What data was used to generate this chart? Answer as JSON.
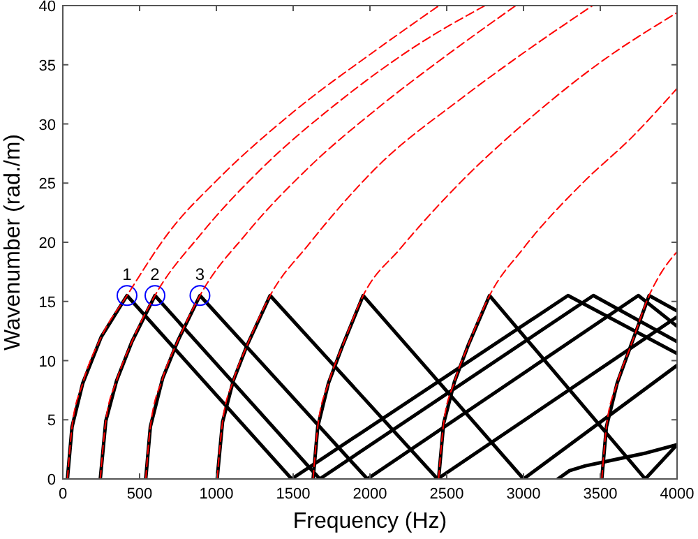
{
  "chart_data": {
    "type": "line",
    "xlabel": "Frequency (Hz)",
    "ylabel": "Wavenumber (rad./m)",
    "xlim": [
      0,
      4000
    ],
    "ylim": [
      0,
      40
    ],
    "xticks": [
      0,
      500,
      1000,
      1500,
      2000,
      2500,
      3000,
      3500,
      4000
    ],
    "yticks": [
      0,
      5,
      10,
      15,
      20,
      25,
      30,
      35,
      40
    ],
    "grid": false,
    "series": [
      {
        "color": "#ff0000",
        "line_style": "dashed",
        "x": [
          30,
          60,
          130,
          250,
          418,
          700,
          1000,
          1500,
          2057,
          2450
        ],
        "values": [
          0,
          4.4,
          8.1,
          12,
          15.5,
          21,
          25.2,
          31,
          36.4,
          40
        ]
      },
      {
        "color": "#ff0000",
        "line_style": "dashed",
        "x": [
          244,
          280,
          350,
          450,
          600,
          900,
          1300,
          1800,
          2300,
          2750
        ],
        "values": [
          0,
          4.9,
          8.3,
          11.6,
          15.5,
          20.7,
          26.3,
          31.9,
          36.6,
          40
        ]
      },
      {
        "color": "#ff0000",
        "line_style": "dashed",
        "x": [
          540,
          570,
          650,
          750,
          893,
          1200,
          1600,
          2057,
          2500,
          2950
        ],
        "values": [
          0,
          4.4,
          8.5,
          11.7,
          15.5,
          20.8,
          26.3,
          31.4,
          35.8,
          40
        ]
      },
      {
        "color": "#ff0000",
        "line_style": "dashed",
        "x": [
          1005,
          1040,
          1110,
          1200,
          1350,
          1600,
          2057,
          2600,
          3000,
          3450
        ],
        "values": [
          0,
          4.8,
          8.3,
          11.3,
          15.5,
          19.8,
          26.5,
          32.2,
          36,
          40
        ]
      },
      {
        "color": "#ff0000",
        "line_style": "dashed",
        "x": [
          1630,
          1660,
          1730,
          1820,
          1956,
          2200,
          2600,
          3000,
          3500,
          4000
        ],
        "values": [
          0,
          4.4,
          8.1,
          11.2,
          15.5,
          19.5,
          25.2,
          30,
          35.2,
          39.4
        ]
      },
      {
        "color": "#ff0000",
        "line_style": "dashed",
        "x": [
          2447,
          2480,
          2550,
          2640,
          2779,
          3000,
          3400,
          3700,
          4000
        ],
        "values": [
          0,
          4.7,
          8.2,
          11.3,
          15.5,
          19.5,
          25.2,
          28.8,
          33
        ]
      },
      {
        "color": "#ff0000",
        "line_style": "dashed",
        "x": [
          3510,
          3540,
          3610,
          3700,
          3818,
          3900,
          4000
        ],
        "values": [
          0,
          4.4,
          8.1,
          11.3,
          15.5,
          17.5,
          19.2
        ]
      },
      {
        "color": "#000000",
        "line_style": "solid",
        "x": [
          30,
          60,
          130,
          250,
          418,
          1490,
          3290,
          4000
        ],
        "values": [
          0,
          4.4,
          8.1,
          12,
          15.5,
          0,
          15.5,
          10.6
        ]
      },
      {
        "color": "#000000",
        "line_style": "solid",
        "x": [
          244,
          280,
          350,
          450,
          600,
          1673,
          3455,
          4000
        ],
        "values": [
          0,
          4.9,
          8.3,
          11.6,
          15.5,
          0,
          15.5,
          11.6
        ]
      },
      {
        "color": "#000000",
        "line_style": "solid",
        "x": [
          540,
          570,
          650,
          750,
          893,
          1983,
          3748,
          4000
        ],
        "values": [
          0,
          4.4,
          8.5,
          11.7,
          15.5,
          0,
          15.5,
          12.9
        ]
      },
      {
        "color": "#000000",
        "line_style": "solid",
        "x": [
          1005,
          1040,
          1110,
          1200,
          1350,
          2440,
          4000
        ],
        "values": [
          0,
          4.8,
          8.3,
          11.3,
          15.5,
          0,
          13.7
        ]
      },
      {
        "color": "#000000",
        "line_style": "solid",
        "x": [
          1630,
          1660,
          1730,
          1820,
          1956,
          3000,
          4000
        ],
        "values": [
          0,
          4.4,
          8.1,
          11.2,
          15.5,
          0,
          9.6
        ]
      },
      {
        "color": "#000000",
        "line_style": "solid",
        "x": [
          2447,
          2480,
          2550,
          2640,
          2779,
          3793,
          4000
        ],
        "values": [
          0,
          4.7,
          8.2,
          11.3,
          15.5,
          0,
          2.9
        ]
      },
      {
        "color": "#000000",
        "line_style": "solid",
        "x": [
          3510,
          3540,
          3610,
          3700,
          3818,
          4000
        ],
        "values": [
          0,
          4.4,
          8.1,
          11.3,
          15.5,
          14.2
        ]
      },
      {
        "color": "#000000",
        "line_style": "solid",
        "x": [
          3224,
          3300,
          3400,
          3510,
          3800,
          4000
        ],
        "values": [
          0,
          0.7,
          1.1,
          1.4,
          2.2,
          2.9
        ]
      },
      {
        "type": "scatter",
        "marker": "circle",
        "color": "#0000ff",
        "x": [
          418,
          600,
          893
        ],
        "values": [
          15.5,
          15.5,
          15.5
        ]
      }
    ],
    "annotations": [
      {
        "text": "1",
        "x": 418,
        "y": 15.5
      },
      {
        "text": "2",
        "x": 600,
        "y": 15.5
      },
      {
        "text": "3",
        "x": 893,
        "y": 15.5
      }
    ]
  }
}
